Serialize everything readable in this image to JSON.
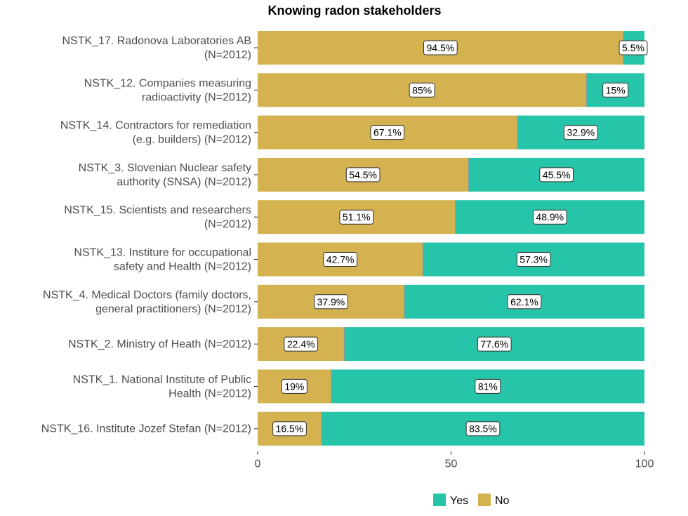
{
  "chart_data": {
    "type": "bar",
    "orientation": "horizontal",
    "stacked": true,
    "title": "Knowing radon stakeholders",
    "xlabel": "",
    "ylabel": "",
    "xlim": [
      0,
      100
    ],
    "xticks": [
      "0",
      "50",
      "100"
    ],
    "legend_position": "bottom",
    "categories": [
      [
        "NSTK_17. Radonova Laboratories AB",
        "(N=2012)"
      ],
      [
        "NSTK_12. Companies measuring",
        "radioactivity (N=2012)"
      ],
      [
        "NSTK_14. Contractors for remediation",
        "(e.g. builders) (N=2012)"
      ],
      [
        "NSTK_3. Slovenian Nuclear safety",
        "authority (SNSA) (N=2012)"
      ],
      [
        "NSTK_15. Scientists and researchers",
        "(N=2012)"
      ],
      [
        "NSTK_13. Institure for occupational",
        "safety and Health (N=2012)"
      ],
      [
        "NSTK_4. Medical Doctors (family doctors,",
        "general practitioners) (N=2012)"
      ],
      [
        "NSTK_2. Ministry of Heath (N=2012)"
      ],
      [
        "NSTK_1. National Institute of Public",
        "Health (N=2012)"
      ],
      [
        "NSTK_16. Institute Jozef Stefan (N=2012)"
      ]
    ],
    "series": [
      {
        "name": "No",
        "color": "#D4B250",
        "values": [
          94.5,
          85,
          67.1,
          54.5,
          51.1,
          42.7,
          37.9,
          22.4,
          19,
          16.5
        ],
        "labels": [
          "94.5%",
          "85%",
          "67.1%",
          "54.5%",
          "51.1%",
          "42.7%",
          "37.9%",
          "22.4%",
          "19%",
          "16.5%"
        ]
      },
      {
        "name": "Yes",
        "color": "#26C4A8",
        "values": [
          5.5,
          15,
          32.9,
          45.5,
          48.9,
          57.3,
          62.1,
          77.6,
          81,
          83.5
        ],
        "labels": [
          "5.5%",
          "15%",
          "32.9%",
          "45.5%",
          "48.9%",
          "57.3%",
          "62.1%",
          "77.6%",
          "81%",
          "83.5%"
        ]
      }
    ],
    "legend": [
      {
        "name": "Yes",
        "color": "#26C4A8"
      },
      {
        "name": "No",
        "color": "#D4B250"
      }
    ]
  }
}
